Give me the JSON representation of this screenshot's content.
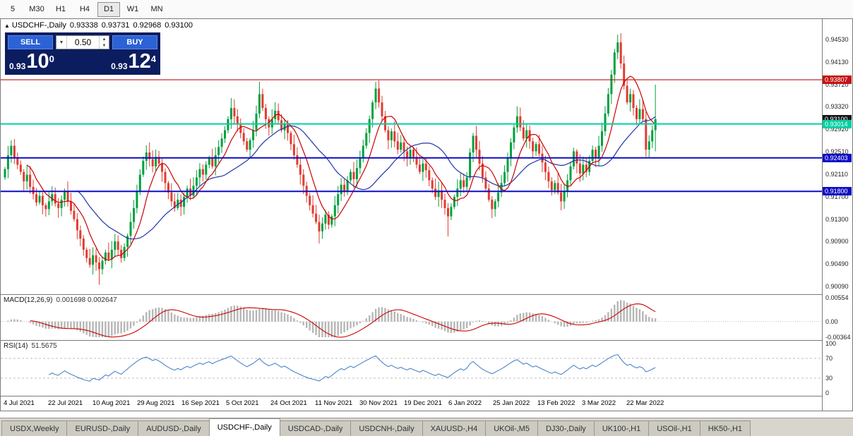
{
  "toolbar": {
    "timeframes": [
      {
        "label": "5",
        "active": false
      },
      {
        "label": "M30",
        "active": false
      },
      {
        "label": "H1",
        "active": false
      },
      {
        "label": "H4",
        "active": false
      },
      {
        "label": "D1",
        "active": true
      },
      {
        "label": "W1",
        "active": false
      },
      {
        "label": "MN",
        "active": false
      }
    ]
  },
  "chart": {
    "header": {
      "marker": "▲",
      "title": "USDCHF-,Daily",
      "open": "0.93338",
      "high": "0.93731",
      "low": "0.92968",
      "close": "0.93100"
    },
    "price_axis": [
      "0.94530",
      "0.94130",
      "0.93720",
      "0.93320",
      "0.92920",
      "0.92510",
      "0.92110",
      "0.91700",
      "0.91300",
      "0.90900",
      "0.90490",
      "0.90090"
    ],
    "date_axis": [
      "4 Jul 2021",
      "22 Jul 2021",
      "10 Aug 2021",
      "29 Aug 2021",
      "16 Sep 2021",
      "5 Oct 2021",
      "24 Oct 2021",
      "11 Nov 2021",
      "30 Nov 2021",
      "19 Dec 2021",
      "6 Jan 2022",
      "25 Jan 2022",
      "13 Feb 2022",
      "3 Mar 2022",
      "22 Mar 2022"
    ],
    "levels": [
      {
        "label": "0.93807",
        "value": 0.93807,
        "color": "#c41212",
        "width": 1.1
      },
      {
        "label": "0.93014",
        "value": 0.93014,
        "color": "#00cfa2",
        "width": 2
      },
      {
        "label": "0.92403",
        "value": 0.92403,
        "color": "#0d0dc4",
        "width": 2
      },
      {
        "label": "0.91800",
        "value": 0.918,
        "color": "#0d0dc4",
        "width": 2
      }
    ],
    "current_price": {
      "label": "0.93100",
      "value": 0.931,
      "color": "#151515"
    },
    "ma": {
      "fast_period": 8,
      "fast_color": "#cc0000",
      "slow_period": 24,
      "slow_color": "#2233aa"
    },
    "candles": {
      "up_color": "#00a13e",
      "down_color": "#e23b30",
      "range_min": 0.8995,
      "range_max": 0.949,
      "first_open": 0.9205,
      "closes": [
        0.922,
        0.9245,
        0.9262,
        0.924,
        0.9228,
        0.9215,
        0.9198,
        0.921,
        0.9188,
        0.9175,
        0.916,
        0.9172,
        0.9155,
        0.9148,
        0.9162,
        0.9175,
        0.9158,
        0.915,
        0.9165,
        0.918,
        0.9162,
        0.9145,
        0.913,
        0.911,
        0.9095,
        0.9075,
        0.906,
        0.9048,
        0.9065,
        0.9052,
        0.904,
        0.9055,
        0.907,
        0.9058,
        0.9075,
        0.909,
        0.9075,
        0.906,
        0.908,
        0.91,
        0.9125,
        0.915,
        0.918,
        0.921,
        0.9235,
        0.925,
        0.9238,
        0.9225,
        0.9242,
        0.923,
        0.9215,
        0.9195,
        0.9178,
        0.9162,
        0.915,
        0.9165,
        0.9152,
        0.917,
        0.9185,
        0.9172,
        0.919,
        0.9205,
        0.922,
        0.921,
        0.9228,
        0.924,
        0.9225,
        0.9245,
        0.926,
        0.9275,
        0.929,
        0.931,
        0.933,
        0.9315,
        0.93,
        0.9285,
        0.927,
        0.9255,
        0.9272,
        0.929,
        0.932,
        0.9355,
        0.933,
        0.931,
        0.9295,
        0.931,
        0.9325,
        0.9308,
        0.929,
        0.9302,
        0.9285,
        0.9265,
        0.9245,
        0.9228,
        0.921,
        0.919,
        0.9172,
        0.9155,
        0.914,
        0.9125,
        0.9108,
        0.9122,
        0.9138,
        0.912,
        0.9135,
        0.9155,
        0.9175,
        0.9192,
        0.918,
        0.92,
        0.9215,
        0.9202,
        0.9222,
        0.924,
        0.9262,
        0.9285,
        0.931,
        0.934,
        0.9365,
        0.934,
        0.9315,
        0.929,
        0.9272,
        0.9288,
        0.927,
        0.9255,
        0.9268,
        0.9252,
        0.924,
        0.9255,
        0.9242,
        0.9228,
        0.9215,
        0.923,
        0.9218,
        0.92,
        0.9185,
        0.917,
        0.9182,
        0.9165,
        0.915,
        0.9135,
        0.9152,
        0.917,
        0.9185,
        0.92,
        0.9188,
        0.9205,
        0.925,
        0.928,
        0.9255,
        0.923,
        0.9205,
        0.9185,
        0.9165,
        0.9148,
        0.9162,
        0.9178,
        0.9195,
        0.9215,
        0.924,
        0.9268,
        0.9295,
        0.9315,
        0.9295,
        0.9275,
        0.929,
        0.927,
        0.9252,
        0.9265,
        0.9248,
        0.9232,
        0.9215,
        0.9198,
        0.9182,
        0.9195,
        0.9178,
        0.9162,
        0.918,
        0.92,
        0.9225,
        0.9252,
        0.923,
        0.9212,
        0.9228,
        0.9215,
        0.9235,
        0.9255,
        0.924,
        0.9262,
        0.9288,
        0.932,
        0.9355,
        0.939,
        0.943,
        0.9448,
        0.941,
        0.937,
        0.934,
        0.9355,
        0.933,
        0.931,
        0.9328,
        0.931,
        0.9255,
        0.927,
        0.929,
        0.931
      ],
      "wick_overrides": {
        "2": {
          "h": 0.9272
        },
        "30": {
          "l": 0.9012
        },
        "45": {
          "h": 0.9263
        },
        "81": {
          "h": 0.9377
        },
        "100": {
          "l": 0.9086
        },
        "118": {
          "h": 0.9377
        },
        "141": {
          "l": 0.9099
        },
        "195": {
          "h": 0.9462
        },
        "204": {
          "l": 0.9242
        },
        "207": {
          "h": 0.9372,
          "l": 0.9252
        }
      }
    }
  },
  "trade": {
    "sell_label": "SELL",
    "buy_label": "BUY",
    "volume": "0.50",
    "dropdown_icon": "▼",
    "spin_up": "▲",
    "spin_down": "▼",
    "sell_price": {
      "prefix": "0.93",
      "big": "10",
      "sup": "0"
    },
    "buy_price": {
      "prefix": "0.93",
      "big": "12",
      "sup": "4"
    }
  },
  "macd": {
    "label": "MACD(12,26,9)",
    "values": "0.001698 0.002647",
    "axis": [
      "0.00554",
      "0.00",
      "-0.00364"
    ],
    "max": 0.00554,
    "min": -0.00364,
    "fast": 12,
    "slow": 26,
    "signal": 9,
    "hist_color": "#b6b6b6",
    "signal_color": "#cc0000"
  },
  "rsi": {
    "label": "RSI(14)",
    "value": "51.5675",
    "axis": [
      "100",
      "70",
      "30",
      "0"
    ],
    "period": 14,
    "color": "#4a86c8",
    "dash_levels": [
      70,
      30
    ]
  },
  "tabs": [
    {
      "label": "USDX,Weekly",
      "active": false
    },
    {
      "label": "EURUSD-,Daily",
      "active": false
    },
    {
      "label": "AUDUSD-,Daily",
      "active": false
    },
    {
      "label": "USDCHF-,Daily",
      "active": true
    },
    {
      "label": "USDCAD-,Daily",
      "active": false
    },
    {
      "label": "USDCNH-,Daily",
      "active": false
    },
    {
      "label": "XAUUSD-,H4",
      "active": false
    },
    {
      "label": "UKOil-,M5",
      "active": false
    },
    {
      "label": "DJ30-,Daily",
      "active": false
    },
    {
      "label": "UK100-,H1",
      "active": false
    },
    {
      "label": "USOil-,H1",
      "active": false
    },
    {
      "label": "HK50-,H1",
      "active": false
    }
  ]
}
